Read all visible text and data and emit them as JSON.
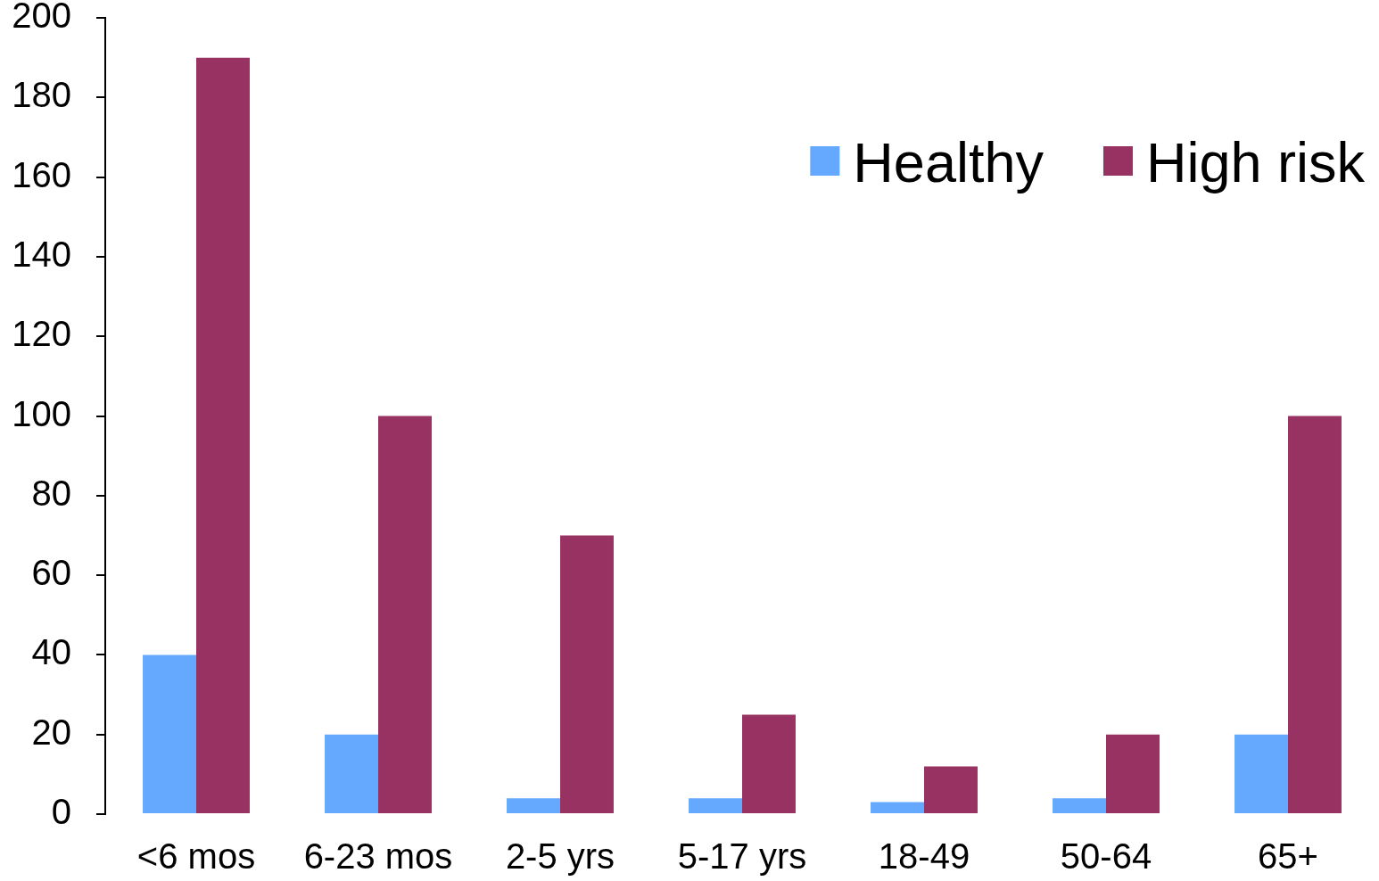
{
  "chart_data": {
    "type": "bar",
    "categories": [
      "<6 mos",
      "6-23 mos",
      "2-5 yrs",
      "5-17 yrs",
      "18-49",
      "50-64",
      "65+"
    ],
    "series": [
      {
        "name": "Healthy",
        "color": "#64a9fe",
        "values": [
          40,
          20,
          4,
          4,
          3,
          4,
          20
        ]
      },
      {
        "name": "High risk",
        "color": "#983262",
        "values": [
          190,
          100,
          70,
          25,
          12,
          20,
          100
        ]
      }
    ],
    "ylim": [
      0,
      200
    ],
    "yticks": [
      0,
      20,
      40,
      60,
      80,
      100,
      120,
      140,
      160,
      180,
      200
    ],
    "grid": false,
    "legend": "top right"
  }
}
